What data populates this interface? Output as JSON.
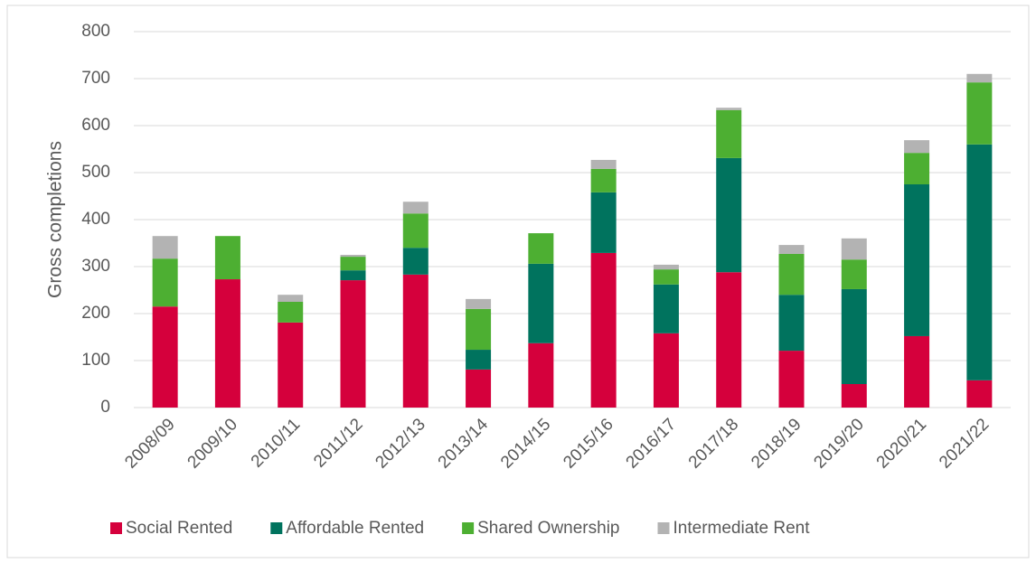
{
  "chart_data": {
    "type": "stacked_bar",
    "ylabel": "Gross completions",
    "categories": [
      "2008/09",
      "2009/10",
      "2010/11",
      "2011/12",
      "2012/13",
      "2013/14",
      "2014/15",
      "2015/16",
      "2016/17",
      "2017/18",
      "2018/19",
      "2019/20",
      "2020/21",
      "2021/22"
    ],
    "series": [
      {
        "name": "Social Rented",
        "color": "#d5003c",
        "values": [
          215,
          273,
          181,
          271,
          283,
          81,
          137,
          329,
          158,
          288,
          121,
          50,
          152,
          58
        ]
      },
      {
        "name": "Affordable Rented",
        "color": "#00735e",
        "values": [
          0,
          0,
          0,
          21,
          57,
          42,
          169,
          129,
          104,
          243,
          119,
          202,
          323,
          502
        ]
      },
      {
        "name": "Shared Ownership",
        "color": "#4daf32",
        "values": [
          102,
          92,
          44,
          29,
          73,
          87,
          65,
          50,
          32,
          102,
          87,
          63,
          67,
          132
        ]
      },
      {
        "name": "Intermediate Rent",
        "color": "#b3b3b3",
        "values": [
          48,
          0,
          15,
          4,
          25,
          21,
          0,
          19,
          10,
          5,
          19,
          45,
          27,
          18
        ]
      }
    ],
    "ylim": [
      0,
      800
    ],
    "yticks": [
      0,
      100,
      200,
      300,
      400,
      500,
      600,
      700,
      800
    ],
    "grid": true
  }
}
